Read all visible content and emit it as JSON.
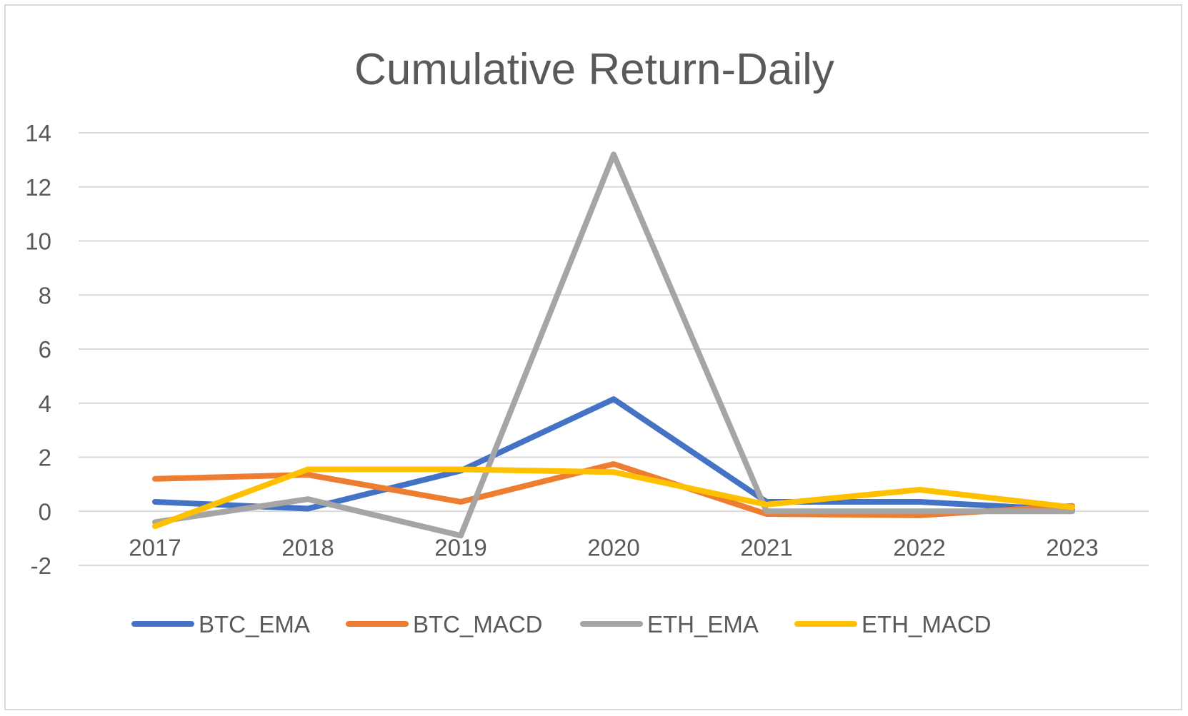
{
  "chart_data": {
    "type": "line",
    "title": "Cumulative Return-Daily",
    "xlabel": "",
    "ylabel": "",
    "categories": [
      "2017",
      "2018",
      "2019",
      "2020",
      "2021",
      "2022",
      "2023"
    ],
    "ylim": [
      -2,
      14
    ],
    "yticks": [
      -2,
      0,
      2,
      4,
      6,
      8,
      10,
      12,
      14
    ],
    "ytick_labels": [
      "-2",
      "0",
      "2",
      "4",
      "6",
      "8",
      "10",
      "12",
      "14"
    ],
    "grid": true,
    "legend_position": "bottom",
    "series": [
      {
        "name": "BTC_EMA",
        "color": "#4472c4",
        "values": [
          0.35,
          0.1,
          1.5,
          4.15,
          0.35,
          0.35,
          0.05
        ]
      },
      {
        "name": "BTC_MACD",
        "color": "#ed7d31",
        "values": [
          1.2,
          1.35,
          0.35,
          1.75,
          -0.1,
          -0.15,
          0.2
        ]
      },
      {
        "name": "ETH_EMA",
        "color": "#a5a5a5",
        "values": [
          -0.4,
          0.45,
          -0.9,
          13.2,
          0.0,
          0.0,
          0.0
        ]
      },
      {
        "name": "ETH_MACD",
        "color": "#ffc000",
        "values": [
          -0.55,
          1.55,
          1.55,
          1.45,
          0.25,
          0.8,
          0.15
        ]
      }
    ]
  }
}
